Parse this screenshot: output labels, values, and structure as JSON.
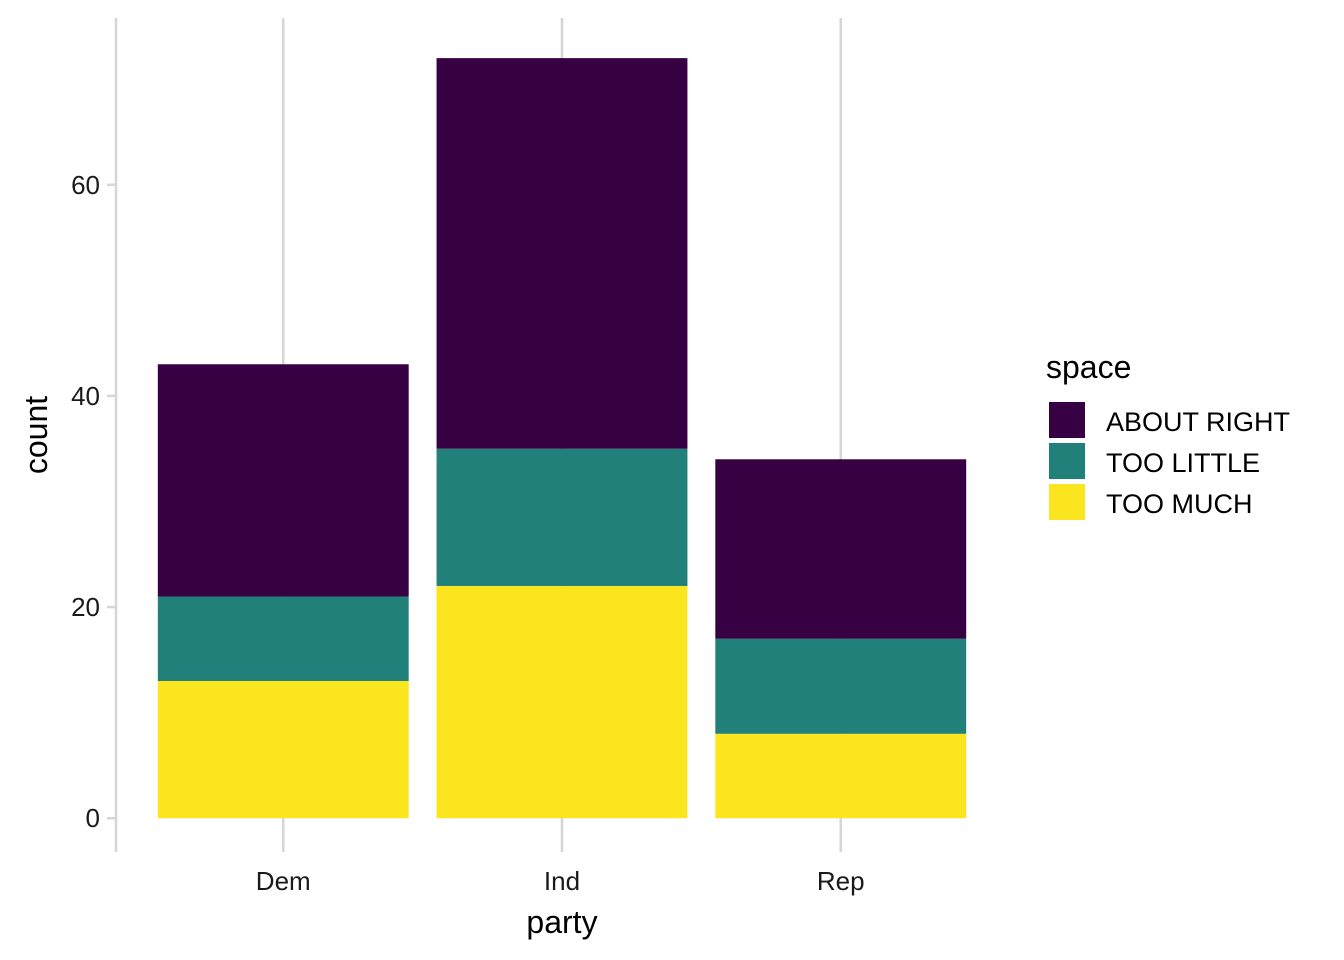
{
  "chart_data": {
    "type": "bar",
    "stacked": true,
    "categories": [
      "Dem",
      "Ind",
      "Rep"
    ],
    "series": [
      {
        "name": "ABOUT RIGHT",
        "color": "#360042",
        "values": [
          22,
          37,
          17
        ]
      },
      {
        "name": "TOO LITTLE",
        "color": "#21807a",
        "values": [
          8,
          13,
          9
        ]
      },
      {
        "name": "TOO MUCH",
        "color": "#fae51e",
        "values": [
          13,
          22,
          8
        ]
      }
    ],
    "stack_order_bottom_to_top": [
      "TOO MUCH",
      "TOO LITTLE",
      "ABOUT RIGHT"
    ],
    "xlabel": "party",
    "ylabel": "count",
    "yticks": [
      0,
      20,
      40,
      60
    ],
    "ylim": [
      -3.2,
      75.8
    ],
    "grid": "vertical-major",
    "legend_title": "space",
    "legend_position": "right",
    "colors": {
      "grid": "#d6d6d6",
      "text": "#1a1a1a"
    }
  }
}
